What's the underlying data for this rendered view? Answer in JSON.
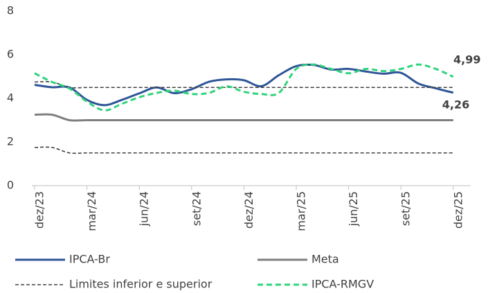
{
  "chart_data": {
    "type": "line",
    "categories": [
      "dez/23",
      null,
      null,
      "mar/24",
      null,
      null,
      "jun/24",
      null,
      null,
      "set/24",
      null,
      null,
      "dez/24",
      null,
      null,
      "mar/25",
      null,
      null,
      "jun/25",
      null,
      null,
      "set/25",
      null,
      null,
      "dez/25"
    ],
    "ylim": [
      0,
      8
    ],
    "yticks": [
      0,
      2,
      4,
      6,
      8
    ],
    "series": [
      {
        "name": "IPCA-Br",
        "color": "#2e5597",
        "style": "solid",
        "values": [
          4.62,
          4.51,
          4.5,
          3.93,
          3.69,
          3.93,
          4.23,
          4.5,
          4.24,
          4.42,
          4.76,
          4.87,
          4.83,
          4.56,
          5.06,
          5.48,
          5.53,
          5.32,
          5.35,
          5.23,
          5.13,
          5.17,
          4.68,
          4.46,
          4.26
        ],
        "value_labels": [
          null,
          null,
          null,
          null,
          null,
          null,
          null,
          null,
          null,
          null,
          null,
          null,
          null,
          null,
          null,
          null,
          null,
          null,
          null,
          null,
          null,
          null,
          null,
          null,
          "4,26"
        ]
      },
      {
        "name": "Meta",
        "color": "#7f7f7f",
        "style": "solid",
        "values": [
          3.25,
          3.25,
          3.0,
          3.0,
          3.0,
          3.0,
          3.0,
          3.0,
          3.0,
          3.0,
          3.0,
          3.0,
          3.0,
          3.0,
          3.0,
          3.0,
          3.0,
          3.0,
          3.0,
          3.0,
          3.0,
          3.0,
          3.0,
          3.0,
          3.0
        ]
      },
      {
        "name": "Limites inferior e superior",
        "color": "#404040",
        "style": "dashed",
        "values": [
          4.75,
          4.75,
          4.5,
          4.5,
          4.5,
          4.5,
          4.5,
          4.5,
          4.5,
          4.5,
          4.5,
          4.5,
          4.5,
          4.5,
          4.5,
          4.5,
          4.5,
          4.5,
          4.5,
          4.5,
          4.5,
          4.5,
          4.5,
          4.5,
          4.5
        ],
        "lower_values": [
          1.75,
          1.75,
          1.5,
          1.5,
          1.5,
          1.5,
          1.5,
          1.5,
          1.5,
          1.5,
          1.5,
          1.5,
          1.5,
          1.5,
          1.5,
          1.5,
          1.5,
          1.5,
          1.5,
          1.5,
          1.5,
          1.5,
          1.5,
          1.5,
          1.5
        ]
      },
      {
        "name": "IPCA-RMGV",
        "color": "#2ed47a",
        "style": "dashed",
        "values": [
          5.15,
          4.75,
          4.45,
          3.85,
          3.45,
          3.75,
          4.05,
          4.25,
          4.35,
          4.2,
          4.25,
          4.55,
          4.3,
          4.2,
          4.25,
          5.35,
          5.55,
          5.35,
          5.15,
          5.35,
          5.25,
          5.35,
          5.55,
          5.35,
          4.99
        ],
        "value_labels": [
          null,
          null,
          null,
          null,
          null,
          null,
          null,
          null,
          null,
          null,
          null,
          null,
          null,
          null,
          null,
          null,
          null,
          null,
          null,
          null,
          null,
          null,
          null,
          null,
          "4,99"
        ]
      }
    ]
  }
}
